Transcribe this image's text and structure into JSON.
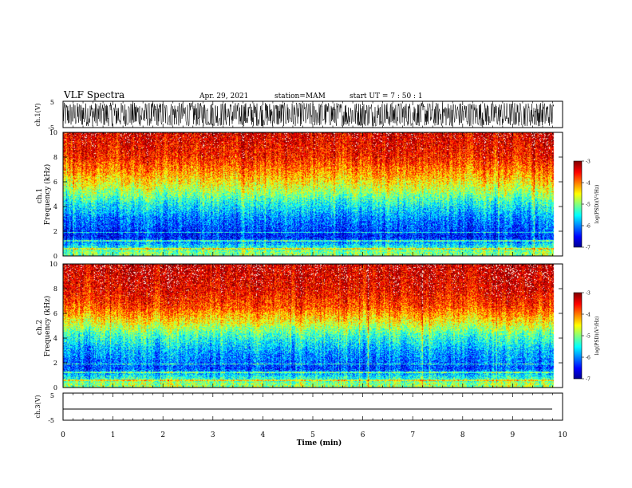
{
  "header": {
    "title": "VLF Spectra",
    "date": "Apr. 29, 2021",
    "station": "station=MAM",
    "start": "start UT = 7 : 50 : 1"
  },
  "chart_data": [
    {
      "type": "line",
      "name": "waveform-ch1",
      "ylabel": "ch.1(V)",
      "ylim": [
        -5,
        5
      ],
      "yticks": [
        "5",
        "-5"
      ],
      "xlim": [
        0,
        10
      ],
      "data_extent_min": 9.83,
      "trace": "dense noise spanning about -4.5 to 4.5 V"
    },
    {
      "type": "heatmap",
      "name": "spectrogram-ch1",
      "ylabel": "ch.1 Frequency (kHz)",
      "ylim": [
        0,
        10
      ],
      "yticks": [
        "0",
        "2",
        "4",
        "6",
        "8",
        "10"
      ],
      "xlim": [
        0,
        10
      ],
      "data_extent_min": 9.83,
      "colorbar": {
        "label": "log(PSD)(V²/Hz)",
        "ticks": [
          "-3",
          "-4",
          "-5",
          "-6",
          "-7"
        ],
        "range": [
          -7,
          -3
        ]
      },
      "band_profile": [
        {
          "freq_khz": 0.3,
          "level": -5.0
        },
        {
          "freq_khz": 1.5,
          "level": -6.4
        },
        {
          "freq_khz": 3.0,
          "level": -6.0
        },
        {
          "freq_khz": 4.3,
          "level": -5.4
        },
        {
          "freq_khz": 5.3,
          "level": -4.8
        },
        {
          "freq_khz": 6.5,
          "level": -4.2
        },
        {
          "freq_khz": 8.0,
          "level": -3.6
        },
        {
          "freq_khz": 10.0,
          "level": -3.3
        }
      ]
    },
    {
      "type": "heatmap",
      "name": "spectrogram-ch2",
      "ylabel": "ch.2 Frequency (kHz)",
      "ylim": [
        0,
        10
      ],
      "yticks": [
        "0",
        "2",
        "4",
        "6",
        "8",
        "10"
      ],
      "xlim": [
        0,
        10
      ],
      "data_extent_min": 9.83,
      "colorbar": {
        "label": "log(PSD)(V²/Hz)",
        "ticks": [
          "-3",
          "-4",
          "-5",
          "-6",
          "-7"
        ],
        "range": [
          -7,
          -3
        ]
      },
      "band_profile": [
        {
          "freq_khz": 0.3,
          "level": -4.9
        },
        {
          "freq_khz": 1.5,
          "level": -6.2
        },
        {
          "freq_khz": 3.0,
          "level": -5.8
        },
        {
          "freq_khz": 4.3,
          "level": -5.2
        },
        {
          "freq_khz": 5.3,
          "level": -4.5
        },
        {
          "freq_khz": 6.5,
          "level": -3.8
        },
        {
          "freq_khz": 8.0,
          "level": -3.4
        },
        {
          "freq_khz": 10.0,
          "level": -3.2
        }
      ]
    },
    {
      "type": "line",
      "name": "waveform-ch3",
      "ylabel": "ch.3(V)",
      "ylim": [
        -5,
        5
      ],
      "yticks": [
        "5",
        "-5"
      ],
      "xlim": [
        0,
        10
      ],
      "data_extent_min": 9.83,
      "trace": "flat line near -2 V"
    }
  ],
  "xaxis": {
    "label": "Time (min)",
    "ticks": [
      "0",
      "1",
      "2",
      "3",
      "4",
      "5",
      "6",
      "7",
      "8",
      "9",
      "10"
    ]
  },
  "colors": {
    "jet": [
      "#00008f",
      "#0000ff",
      "#00ffff",
      "#ffff00",
      "#ff0000",
      "#800000"
    ]
  }
}
